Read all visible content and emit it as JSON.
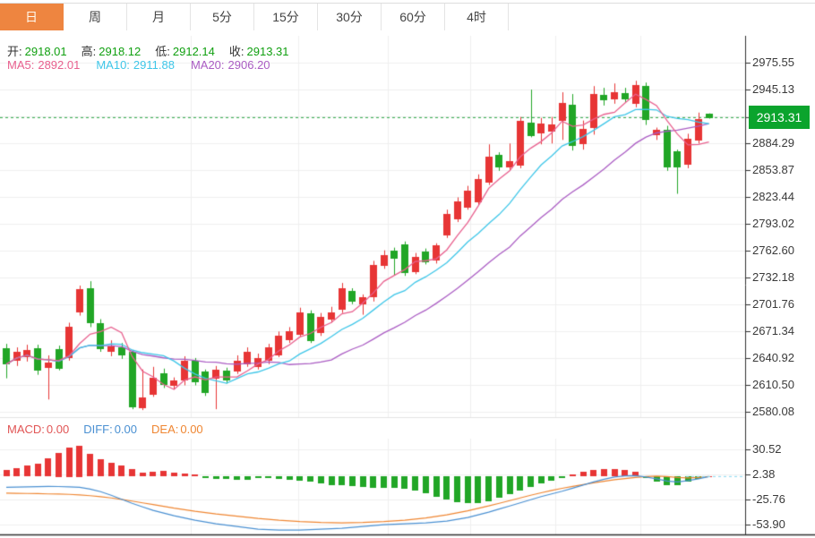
{
  "tabs": [
    {
      "key": "day",
      "label": "日",
      "active": true
    },
    {
      "key": "week",
      "label": "周",
      "active": false
    },
    {
      "key": "month",
      "label": "月",
      "active": false
    },
    {
      "key": "5min",
      "label": "5分",
      "active": false
    },
    {
      "key": "15min",
      "label": "15分",
      "active": false
    },
    {
      "key": "30min",
      "label": "30分",
      "active": false
    },
    {
      "key": "60min",
      "label": "60分",
      "active": false
    },
    {
      "key": "4hour",
      "label": "4时",
      "active": false
    }
  ],
  "quote": {
    "open_label": "开:",
    "open": "2918.01",
    "high_label": "高:",
    "high": "2918.12",
    "low_label": "低:",
    "low": "2912.14",
    "close_label": "收:",
    "close": "2913.31"
  },
  "ma_legend": {
    "ma5_label": "MA5:",
    "ma5": "2892.01",
    "ma10_label": "MA10:",
    "ma10": "2911.88",
    "ma20_label": "MA20:",
    "ma20": "2906.20"
  },
  "macd_legend": {
    "macd_label": "MACD:",
    "macd": "0.00",
    "diff_label": "DIFF:",
    "diff": "0.00",
    "dea_label": "DEA:",
    "dea": "0.00"
  },
  "price_axis": {
    "ticks": [
      "2975.55",
      "2945.13",
      "2884.29",
      "2853.87",
      "2823.44",
      "2793.02",
      "2762.60",
      "2732.18",
      "2701.76",
      "2671.34",
      "2640.92",
      "2610.50",
      "2580.08"
    ],
    "current": "2913.31"
  },
  "macd_axis": {
    "ticks": [
      "30.52",
      "2.38",
      "-25.76",
      "-53.90"
    ]
  },
  "colors": {
    "up": "#e73535",
    "down": "#21a626",
    "ma5": "#e8608e",
    "ma10": "#3ec6e8",
    "ma20": "#aa5cc3",
    "diff": "#4a90d2",
    "dea": "#ef8632",
    "accent": "#ee8540",
    "price_tag_bg": "#0ba42d",
    "current_line": "#28a645",
    "grid": "#efefef",
    "border": "#2f2f2f",
    "zero_dash": "#86d7ef"
  },
  "chart_data": {
    "type": "candlestick",
    "title": "Daily K-line with MA5/MA10/MA20 and MACD",
    "legend_position": "top-left",
    "grid": true,
    "price_ylim": [
      2580.08,
      2975.55
    ],
    "price_tick_step": 30.42,
    "current_price": 2913.31,
    "ma_periods": [
      5,
      10,
      20
    ],
    "ma_last_values": {
      "MA5": 2892.01,
      "MA10": 2911.88,
      "MA20": 2906.2
    },
    "candles_ohlc": [
      [
        2652,
        2657,
        2618,
        2634
      ],
      [
        2638,
        2653,
        2632,
        2648
      ],
      [
        2642,
        2656,
        2637,
        2650
      ],
      [
        2652,
        2656,
        2622,
        2627
      ],
      [
        2630,
        2644,
        2594,
        2636
      ],
      [
        2651,
        2655,
        2627,
        2629
      ],
      [
        2641,
        2681,
        2638,
        2676
      ],
      [
        2693,
        2723,
        2689,
        2719
      ],
      [
        2720,
        2728,
        2676,
        2680
      ],
      [
        2680,
        2685,
        2648,
        2651
      ],
      [
        2648,
        2661,
        2643,
        2654
      ],
      [
        2653,
        2658,
        2640,
        2644
      ],
      [
        2648,
        2650,
        2583,
        2585
      ],
      [
        2584,
        2628,
        2582,
        2596
      ],
      [
        2600,
        2631,
        2597,
        2619
      ],
      [
        2624,
        2629,
        2607,
        2611
      ],
      [
        2610,
        2619,
        2606,
        2616
      ],
      [
        2616,
        2643,
        2610,
        2638
      ],
      [
        2638,
        2641,
        2610,
        2614
      ],
      [
        2626,
        2628,
        2598,
        2602
      ],
      [
        2618,
        2632,
        2583,
        2628
      ],
      [
        2627,
        2630,
        2612,
        2616
      ],
      [
        2626,
        2644,
        2623,
        2638
      ],
      [
        2634,
        2653,
        2631,
        2648
      ],
      [
        2631,
        2646,
        2628,
        2641
      ],
      [
        2638,
        2657,
        2634,
        2653
      ],
      [
        2644,
        2671,
        2642,
        2666
      ],
      [
        2661,
        2676,
        2658,
        2671
      ],
      [
        2668,
        2698,
        2665,
        2693
      ],
      [
        2692,
        2695,
        2658,
        2661
      ],
      [
        2670,
        2692,
        2666,
        2688
      ],
      [
        2685,
        2699,
        2681,
        2693
      ],
      [
        2696,
        2726,
        2692,
        2720
      ],
      [
        2717,
        2720,
        2702,
        2705
      ],
      [
        2702,
        2713,
        2690,
        2710
      ],
      [
        2709,
        2751,
        2705,
        2746
      ],
      [
        2746,
        2763,
        2742,
        2758
      ],
      [
        2763,
        2766,
        2735,
        2754
      ],
      [
        2770,
        2773,
        2734,
        2738
      ],
      [
        2739,
        2760,
        2736,
        2756
      ],
      [
        2762,
        2765,
        2747,
        2750
      ],
      [
        2752,
        2771,
        2748,
        2769
      ],
      [
        2780,
        2809,
        2777,
        2804
      ],
      [
        2798,
        2823,
        2795,
        2818
      ],
      [
        2812,
        2836,
        2809,
        2831
      ],
      [
        2818,
        2849,
        2814,
        2844
      ],
      [
        2840,
        2883,
        2837,
        2869
      ],
      [
        2871,
        2874,
        2853,
        2857
      ],
      [
        2857,
        2884,
        2854,
        2864
      ],
      [
        2859,
        2914,
        2856,
        2910
      ],
      [
        2908,
        2945,
        2891,
        2893
      ],
      [
        2896,
        2913,
        2883,
        2907
      ],
      [
        2898,
        2914,
        2884,
        2906
      ],
      [
        2910,
        2942,
        2888,
        2930
      ],
      [
        2928,
        2940,
        2876,
        2881
      ],
      [
        2884,
        2910,
        2877,
        2901
      ],
      [
        2901,
        2949,
        2894,
        2940
      ],
      [
        2939,
        2947,
        2927,
        2933
      ],
      [
        2934,
        2952,
        2929,
        2942
      ],
      [
        2941,
        2947,
        2931,
        2934
      ],
      [
        2929,
        2955,
        2925,
        2950
      ],
      [
        2949,
        2953,
        2905,
        2910
      ],
      [
        2893,
        2902,
        2888,
        2899
      ],
      [
        2900,
        2904,
        2853,
        2857
      ],
      [
        2875,
        2877,
        2827,
        2857
      ],
      [
        2860,
        2895,
        2856,
        2889
      ],
      [
        2888,
        2919,
        2884,
        2912
      ],
      [
        2918.01,
        2918.12,
        2912.14,
        2913.31
      ]
    ],
    "macd": {
      "ylim": [
        -53.9,
        30.52
      ],
      "last_values": {
        "MACD": 0.0,
        "DIFF": 0.0,
        "DEA": 0.0
      },
      "hist": [
        7,
        9,
        12,
        14,
        20,
        27,
        33,
        35,
        25,
        19,
        15,
        12,
        8,
        4,
        5,
        6,
        4,
        3,
        2,
        -2,
        -3,
        -3,
        -4,
        -4,
        -2,
        -2,
        -3,
        -4,
        -5,
        -6,
        -8,
        -10,
        -10,
        -11,
        -12,
        -13,
        -13,
        -13,
        -14,
        -16,
        -19,
        -23,
        -26,
        -29,
        -30,
        -30,
        -28,
        -24,
        -20,
        -16,
        -12,
        -8,
        -5,
        -2,
        2,
        5,
        7,
        8,
        8,
        7,
        5,
        -2,
        -6,
        -10,
        -10,
        -6,
        -3,
        0
      ],
      "diff": [
        -12,
        -11.8,
        -11.5,
        -11.3,
        -11,
        -11.2,
        -11.5,
        -12,
        -14,
        -17,
        -21,
        -25.5,
        -30,
        -34,
        -38,
        -41,
        -44,
        -46.5,
        -49,
        -51,
        -53,
        -54.5,
        -56,
        -57.5,
        -59,
        -59.5,
        -60,
        -60,
        -60,
        -59.5,
        -59,
        -58.5,
        -58,
        -57,
        -56,
        -55,
        -54,
        -53.5,
        -53,
        -52.5,
        -52,
        -51,
        -50,
        -48,
        -46,
        -43,
        -40,
        -36.5,
        -33,
        -29.5,
        -26,
        -22.5,
        -19.5,
        -16.5,
        -13,
        -9.5,
        -6,
        -3,
        -0.5,
        0.8,
        1,
        -0.5,
        -2.5,
        -5,
        -6,
        -4.5,
        -2.5,
        0
      ],
      "dea": [
        -18.5,
        -18.8,
        -19,
        -19.2,
        -19.5,
        -19.7,
        -20,
        -20.7,
        -21.5,
        -22.7,
        -24,
        -25.7,
        -27.5,
        -29.5,
        -31.5,
        -33.5,
        -35.5,
        -37.2,
        -39,
        -40.5,
        -42,
        -43.2,
        -44.5,
        -45.7,
        -47,
        -48,
        -49,
        -49.7,
        -50.5,
        -51,
        -51.5,
        -51.7,
        -52,
        -51.7,
        -51.5,
        -51,
        -50.5,
        -49.7,
        -49,
        -47.7,
        -46.5,
        -44.7,
        -43,
        -40.7,
        -38.5,
        -35.7,
        -33,
        -30,
        -27,
        -24,
        -21,
        -18.2,
        -15.5,
        -13.2,
        -11,
        -9,
        -7,
        -5.2,
        -3.5,
        -2.2,
        -1,
        0,
        0.5,
        0,
        -1,
        -1.5,
        -1,
        0
      ]
    }
  }
}
